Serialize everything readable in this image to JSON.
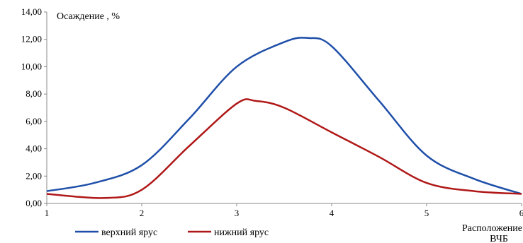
{
  "chart_data": {
    "type": "line",
    "ylabel": "Осаждение , %",
    "xlabel_lines": [
      "Расположение",
      "ВЧБ"
    ],
    "xlim": [
      1,
      6
    ],
    "ylim": [
      0,
      14
    ],
    "x_ticks": [
      "1",
      "2",
      "3",
      "4",
      "5",
      "6"
    ],
    "y_ticks": [
      "0,00",
      "2,00",
      "4,00",
      "6,00",
      "8,00",
      "10,00",
      "12,00",
      "14,00"
    ],
    "grid": false,
    "legend_position": "bottom",
    "series": [
      {
        "name": "верхний ярус",
        "color": "#1f4fa8",
        "points": [
          [
            1,
            0.9
          ],
          [
            1.5,
            1.5
          ],
          [
            2,
            2.8
          ],
          [
            2.5,
            6.2
          ],
          [
            3,
            10.0
          ],
          [
            3.5,
            11.8
          ],
          [
            3.75,
            12.1
          ],
          [
            4,
            11.5
          ],
          [
            4.5,
            7.5
          ],
          [
            5,
            3.5
          ],
          [
            5.5,
            1.8
          ],
          [
            6,
            0.7
          ]
        ]
      },
      {
        "name": "нижний ярус",
        "color": "#b01818",
        "points": [
          [
            1,
            0.7
          ],
          [
            1.6,
            0.4
          ],
          [
            2,
            1.0
          ],
          [
            2.5,
            4.2
          ],
          [
            3,
            7.3
          ],
          [
            3.2,
            7.5
          ],
          [
            3.5,
            7.0
          ],
          [
            4,
            5.2
          ],
          [
            4.5,
            3.4
          ],
          [
            5,
            1.5
          ],
          [
            5.5,
            0.9
          ],
          [
            6,
            0.7
          ]
        ]
      }
    ]
  }
}
